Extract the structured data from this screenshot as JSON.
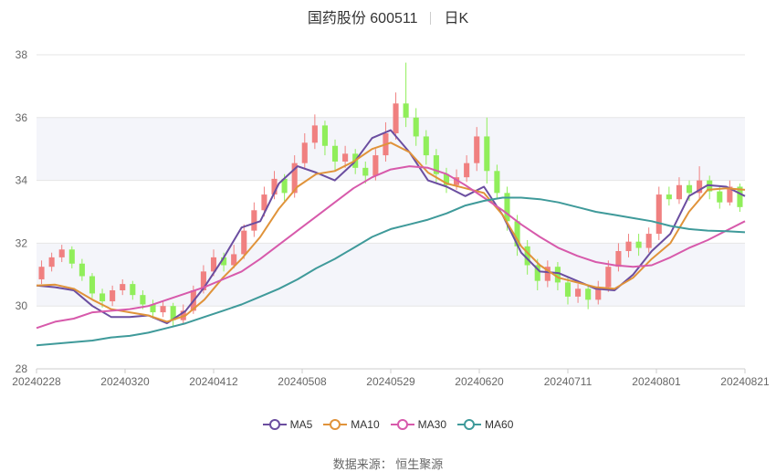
{
  "title": {
    "name": "国药股份 600511",
    "period": "日K"
  },
  "source": "数据来源： 恒生聚源",
  "chart_data": {
    "type": "candlestick",
    "ylim": [
      28,
      38
    ],
    "yticks": [
      28,
      30,
      32,
      34,
      36,
      38
    ],
    "xticks": [
      "20240228",
      "20240320",
      "20240412",
      "20240508",
      "20240529",
      "20240620",
      "20240711",
      "20240801",
      "20240821"
    ],
    "grid": true,
    "legend_position": "bottom",
    "colors": {
      "up": "#f08080",
      "down": "#90ee5a",
      "MA5": "#6b4ea0",
      "MA10": "#e0933a",
      "MA30": "#d75aab",
      "MA60": "#3f9a9a"
    },
    "candles": [
      [
        30.85,
        31.25,
        31.45,
        30.7
      ],
      [
        31.25,
        31.55,
        31.7,
        31.1
      ],
      [
        31.55,
        31.8,
        31.95,
        31.4
      ],
      [
        31.8,
        31.35,
        31.9,
        31.2
      ],
      [
        31.35,
        30.95,
        31.5,
        30.8
      ],
      [
        30.95,
        30.4,
        31.05,
        30.25
      ],
      [
        30.4,
        30.15,
        30.55,
        29.95
      ],
      [
        30.15,
        30.5,
        30.65,
        30.0
      ],
      [
        30.5,
        30.7,
        30.85,
        30.35
      ],
      [
        30.7,
        30.35,
        30.8,
        30.2
      ],
      [
        30.35,
        30.05,
        30.5,
        29.9
      ],
      [
        30.05,
        29.8,
        30.2,
        29.6
      ],
      [
        29.8,
        30.0,
        30.15,
        29.65
      ],
      [
        30.0,
        29.55,
        30.1,
        29.35
      ],
      [
        29.55,
        29.85,
        30.05,
        29.4
      ],
      [
        29.85,
        30.5,
        30.65,
        29.75
      ],
      [
        30.5,
        31.1,
        31.3,
        30.4
      ],
      [
        31.1,
        31.55,
        31.8,
        30.95
      ],
      [
        31.55,
        31.3,
        31.7,
        31.1
      ],
      [
        31.3,
        31.65,
        31.95,
        31.2
      ],
      [
        31.65,
        32.4,
        32.6,
        31.5
      ],
      [
        32.4,
        33.05,
        33.3,
        32.2
      ],
      [
        33.05,
        33.55,
        33.8,
        32.85
      ],
      [
        33.55,
        34.05,
        34.3,
        33.4
      ],
      [
        34.05,
        33.6,
        34.2,
        33.35
      ],
      [
        33.6,
        34.55,
        34.8,
        33.45
      ],
      [
        34.55,
        35.2,
        35.5,
        34.35
      ],
      [
        35.2,
        35.75,
        36.1,
        35.0
      ],
      [
        35.75,
        35.1,
        35.9,
        34.8
      ],
      [
        35.1,
        34.6,
        35.3,
        34.3
      ],
      [
        34.6,
        34.85,
        35.1,
        34.4
      ],
      [
        34.85,
        34.4,
        35.0,
        34.2
      ],
      [
        34.4,
        34.15,
        34.6,
        33.9
      ],
      [
        34.15,
        34.8,
        35.0,
        34.0
      ],
      [
        34.8,
        35.5,
        35.85,
        34.6
      ],
      [
        35.5,
        36.45,
        36.8,
        35.3
      ],
      [
        36.45,
        36.0,
        37.75,
        35.7
      ],
      [
        36.0,
        35.4,
        36.3,
        35.1
      ],
      [
        35.4,
        34.8,
        35.6,
        34.5
      ],
      [
        34.8,
        34.2,
        35.0,
        33.9
      ],
      [
        34.2,
        33.85,
        34.4,
        33.6
      ],
      [
        33.85,
        34.1,
        34.35,
        33.7
      ],
      [
        34.1,
        34.55,
        34.8,
        33.95
      ],
      [
        34.55,
        35.4,
        35.7,
        34.3
      ],
      [
        35.4,
        34.3,
        36.0,
        33.9
      ],
      [
        34.3,
        33.6,
        34.5,
        33.4
      ],
      [
        33.6,
        32.7,
        33.8,
        32.4
      ],
      [
        32.7,
        31.9,
        32.9,
        31.6
      ],
      [
        31.9,
        31.3,
        32.1,
        31.0
      ],
      [
        31.3,
        30.8,
        31.5,
        30.5
      ],
      [
        30.8,
        31.25,
        31.45,
        30.6
      ],
      [
        31.25,
        30.75,
        31.4,
        30.5
      ],
      [
        30.75,
        30.3,
        30.9,
        30.05
      ],
      [
        30.3,
        30.55,
        30.7,
        30.1
      ],
      [
        30.55,
        30.2,
        30.65,
        29.9
      ],
      [
        30.2,
        30.6,
        30.8,
        30.05
      ],
      [
        30.6,
        31.25,
        31.45,
        30.45
      ],
      [
        31.25,
        31.75,
        32.0,
        31.1
      ],
      [
        31.75,
        32.05,
        32.3,
        31.55
      ],
      [
        32.05,
        31.85,
        32.3,
        31.6
      ],
      [
        31.85,
        32.3,
        32.5,
        31.7
      ],
      [
        32.3,
        33.55,
        33.8,
        32.1
      ],
      [
        33.55,
        33.4,
        33.8,
        33.2
      ],
      [
        33.4,
        33.85,
        34.1,
        33.25
      ],
      [
        33.85,
        33.6,
        34.0,
        33.35
      ],
      [
        33.6,
        34.0,
        34.45,
        33.4
      ],
      [
        34.0,
        33.65,
        34.15,
        33.4
      ],
      [
        33.65,
        33.3,
        33.8,
        33.1
      ],
      [
        33.3,
        33.8,
        34.0,
        33.2
      ],
      [
        33.8,
        33.15,
        33.9,
        33.0
      ]
    ],
    "series": [
      {
        "name": "MA5",
        "values": [
          30.65,
          30.6,
          30.5,
          30.0,
          29.65,
          29.65,
          29.7,
          29.45,
          29.85,
          30.6,
          31.5,
          32.5,
          32.7,
          33.9,
          34.45,
          34.25,
          34.0,
          34.55,
          35.35,
          35.6,
          34.9,
          34.0,
          33.8,
          33.5,
          33.8,
          32.9,
          31.7,
          31.1,
          31.05,
          30.8,
          30.55,
          30.5,
          31.0,
          31.75,
          32.3,
          33.5,
          33.85,
          33.8,
          33.5
        ]
      },
      {
        "name": "MA10",
        "values": [
          30.65,
          30.68,
          30.55,
          30.2,
          29.9,
          29.8,
          29.7,
          29.5,
          29.7,
          30.2,
          30.9,
          31.5,
          32.2,
          33.1,
          33.8,
          34.2,
          34.3,
          34.6,
          35.0,
          35.2,
          34.9,
          34.25,
          33.9,
          33.75,
          33.6,
          32.9,
          31.9,
          31.3,
          30.9,
          30.75,
          30.6,
          30.55,
          30.9,
          31.5,
          32.0,
          33.0,
          33.7,
          33.75,
          33.7
        ]
      },
      {
        "name": "MA30",
        "values": [
          29.3,
          29.5,
          29.6,
          29.8,
          29.85,
          29.9,
          30.0,
          30.2,
          30.4,
          30.6,
          30.85,
          31.1,
          31.5,
          31.95,
          32.4,
          32.85,
          33.3,
          33.75,
          34.1,
          34.35,
          34.45,
          34.4,
          34.2,
          33.85,
          33.45,
          33.05,
          32.6,
          32.2,
          31.85,
          31.6,
          31.4,
          31.3,
          31.25,
          31.3,
          31.55,
          31.85,
          32.1,
          32.4,
          32.7
        ]
      },
      {
        "name": "MA60",
        "values": [
          28.75,
          28.8,
          28.85,
          28.9,
          29.0,
          29.05,
          29.15,
          29.3,
          29.45,
          29.65,
          29.85,
          30.05,
          30.3,
          30.55,
          30.85,
          31.2,
          31.5,
          31.85,
          32.2,
          32.45,
          32.6,
          32.75,
          32.95,
          33.2,
          33.35,
          33.45,
          33.45,
          33.4,
          33.3,
          33.15,
          33.0,
          32.9,
          32.8,
          32.7,
          32.55,
          32.45,
          32.4,
          32.38,
          32.35
        ]
      }
    ]
  }
}
